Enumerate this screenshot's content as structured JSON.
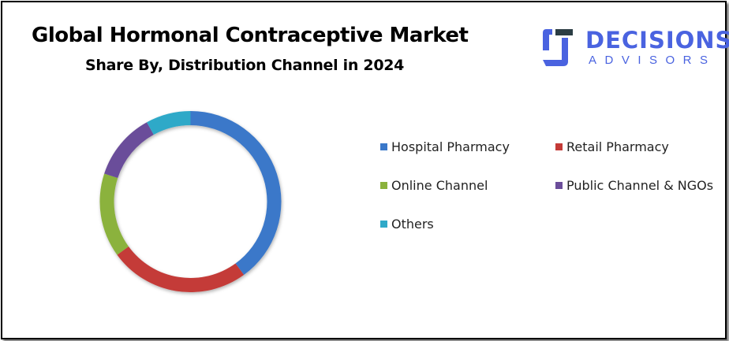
{
  "chart_data": {
    "type": "pie",
    "variant": "donut",
    "title": "Global Hormonal Contraceptive Market",
    "subtitle": "Share By, Distribution Channel in 2024",
    "categories": [
      "Hospital Pharmacy",
      "Retail Pharmacy",
      "Online Channel",
      "Public Channel & NGOs",
      "Others"
    ],
    "values": [
      40,
      25,
      15,
      12,
      8
    ],
    "colors": [
      "#3a78c9",
      "#c43a37",
      "#8bb23c",
      "#6b4d9a",
      "#2fa9c8"
    ],
    "legend_position": "right"
  },
  "logo": {
    "line1": "DECISIONS",
    "line2": "ADVISORS",
    "color": "#4a63e0"
  }
}
